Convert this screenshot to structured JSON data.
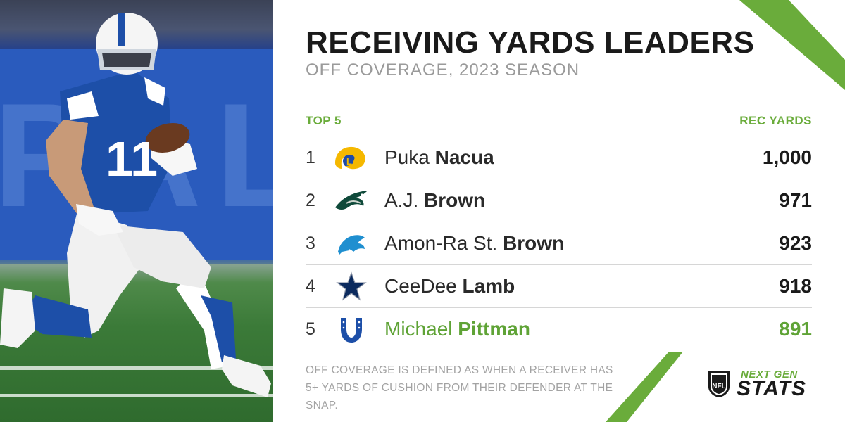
{
  "header": {
    "title": "RECEIVING YARDS LEADERS",
    "subtitle": "OFF COVERAGE, 2023 SEASON"
  },
  "table": {
    "left_header": "TOP 5",
    "right_header": "REC YARDS",
    "rows": [
      {
        "rank": "1",
        "first": "Puka",
        "last": "Nacua",
        "yards": "1,000",
        "team_icon": "rams-logo-icon",
        "highlight": false
      },
      {
        "rank": "2",
        "first": "A.J.",
        "last": "Brown",
        "yards": "971",
        "team_icon": "eagles-logo-icon",
        "highlight": false
      },
      {
        "rank": "3",
        "first": "Amon-Ra St.",
        "last": "Brown",
        "yards": "923",
        "team_icon": "lions-logo-icon",
        "highlight": false
      },
      {
        "rank": "4",
        "first": "CeeDee",
        "last": "Lamb",
        "yards": "918",
        "team_icon": "cowboys-star-icon",
        "highlight": false
      },
      {
        "rank": "5",
        "first": "Michael",
        "last": "Pittman",
        "yards": "891",
        "team_icon": "colts-horseshoe-icon",
        "highlight": true
      }
    ]
  },
  "footnote": "OFF COVERAGE IS DEFINED AS WHEN A RECEIVER HAS 5+ YARDS OF CUSHION FROM THEIR DEFENDER AT THE SNAP.",
  "brand": {
    "shield_text": "NFL",
    "line1": "NEXT GEN",
    "line2": "STATS"
  },
  "photo": {
    "jersey_number": "11"
  },
  "colors": {
    "accent_green": "#6aac3b",
    "highlight_green": "#5fa336",
    "colts_blue": "#1d4fa8"
  }
}
